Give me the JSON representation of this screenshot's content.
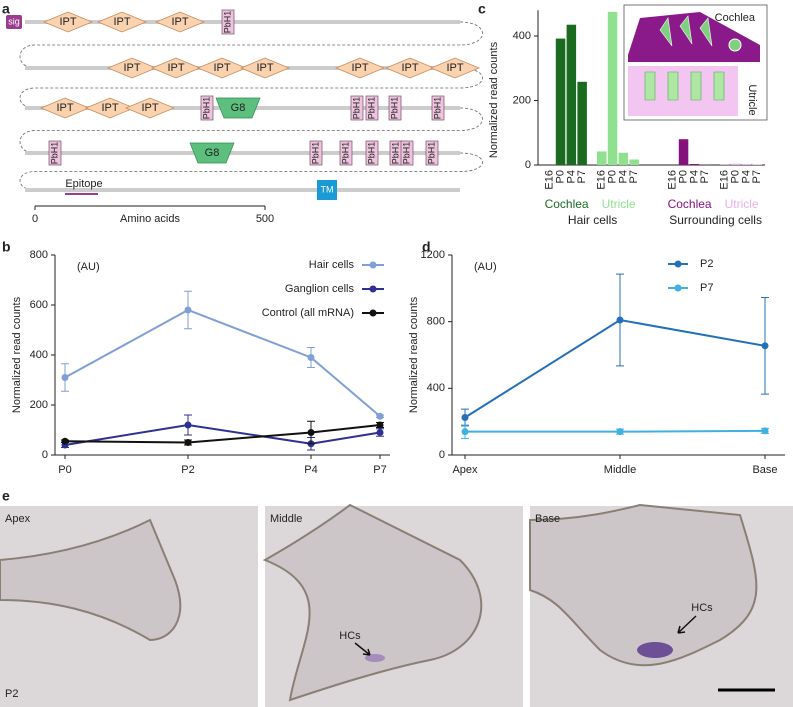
{
  "panel_labels": [
    "a",
    "b",
    "c",
    "d",
    "e"
  ],
  "domain_diagram": {
    "rows": [
      {
        "domains": [
          {
            "label": "sig",
            "shape": "tag"
          },
          {
            "label": "IPT",
            "shape": "diamond"
          },
          {
            "label": "IPT",
            "shape": "diamond"
          },
          {
            "label": "IPT",
            "shape": "diamond"
          },
          {
            "label": "PbH1",
            "shape": "box"
          }
        ]
      },
      {
        "domains": [
          {
            "label": "IPT",
            "shape": "diamond"
          },
          {
            "label": "IPT",
            "shape": "diamond"
          },
          {
            "label": "IPT",
            "shape": "diamond"
          },
          {
            "label": "IPT",
            "shape": "diamond"
          },
          {
            "label": "IPT",
            "shape": "diamond"
          },
          {
            "label": "IPT",
            "shape": "diamond"
          },
          {
            "label": "IPT",
            "shape": "diamond"
          }
        ]
      },
      {
        "domains": [
          {
            "label": "IPT",
            "shape": "diamond"
          },
          {
            "label": "IPT",
            "shape": "diamond"
          },
          {
            "label": "IPT",
            "shape": "diamond"
          },
          {
            "label": "PbH1",
            "shape": "box"
          },
          {
            "label": "G8",
            "shape": "trapezoid"
          },
          {
            "label": "PbH1",
            "shape": "box"
          },
          {
            "label": "PbH1",
            "shape": "box"
          },
          {
            "label": "PbH1",
            "shape": "box"
          },
          {
            "label": "PbH1",
            "shape": "box"
          }
        ]
      },
      {
        "domains": [
          {
            "label": "PbH1",
            "shape": "box"
          },
          {
            "label": "G8",
            "shape": "trapezoid"
          },
          {
            "label": "PbH1",
            "shape": "box"
          },
          {
            "label": "PbH1",
            "shape": "box"
          },
          {
            "label": "PbH1",
            "shape": "box"
          },
          {
            "label": "PbH1",
            "shape": "box"
          },
          {
            "label": "PbH1",
            "shape": "box"
          },
          {
            "label": "PbH1",
            "shape": "box"
          }
        ]
      },
      {
        "domains": [
          {
            "label": "Epitope",
            "shape": "underline"
          },
          {
            "label": "TM",
            "shape": "tm"
          }
        ]
      }
    ],
    "axis_label": "Amino acids",
    "axis_ticks": [
      0,
      500
    ]
  },
  "chart_data": [
    {
      "type": "line",
      "annotation": "(AU)",
      "ylabel": "Normalized read counts",
      "categories": [
        "P0",
        "P2",
        "P4",
        "P7"
      ],
      "ylim": [
        0,
        800
      ],
      "yticks": [
        0,
        200,
        400,
        600,
        800
      ],
      "series": [
        {
          "name": "Hair cells",
          "color": "#809fd6",
          "values": [
            310,
            580,
            390,
            155
          ],
          "errors": [
            55,
            75,
            40,
            5
          ]
        },
        {
          "name": "Ganglion cells",
          "color": "#2e3192",
          "values": [
            40,
            120,
            45,
            90
          ],
          "errors": [
            10,
            40,
            25,
            15
          ]
        },
        {
          "name": "Control (all mRNA)",
          "color": "#111111",
          "values": [
            55,
            50,
            90,
            120
          ],
          "errors": [
            5,
            10,
            45,
            10
          ]
        }
      ]
    },
    {
      "type": "bar",
      "ylabel": "Normalized read counts",
      "categories": [
        "E16",
        "P0",
        "P4",
        "P7"
      ],
      "ylim": [
        0,
        480
      ],
      "yticks": [
        0,
        200,
        400
      ],
      "groups": [
        "Hair cells",
        "Surrounding cells"
      ],
      "inset_labels": [
        "Cochlea",
        "Utricle"
      ],
      "series": [
        {
          "name": "Cochlea",
          "color": "#1a6b1f",
          "group": 0,
          "values": [
            0,
            392,
            435,
            258
          ]
        },
        {
          "name": "Utricle",
          "color": "#8fe08f",
          "group": 0,
          "values": [
            42,
            475,
            38,
            17
          ]
        },
        {
          "name": "Cochlea",
          "color": "#85117f",
          "group": 1,
          "values": [
            0,
            80,
            3,
            1
          ]
        },
        {
          "name": "Utricle",
          "color": "#e8b0e6",
          "group": 1,
          "values": [
            1,
            4,
            3,
            2
          ]
        }
      ]
    },
    {
      "type": "line",
      "annotation": "(AU)",
      "ylabel": "Normalized read counts",
      "categories": [
        "Apex",
        "Middle",
        "Base"
      ],
      "ylim": [
        0,
        1200
      ],
      "yticks": [
        0,
        400,
        800,
        1200
      ],
      "series": [
        {
          "name": "P2",
          "color": "#2470b8",
          "values": [
            225,
            810,
            655
          ],
          "errors": [
            50,
            275,
            290
          ]
        },
        {
          "name": "P7",
          "color": "#3fb0e0",
          "values": [
            140,
            140,
            145
          ],
          "errors": [
            40,
            15,
            15
          ]
        }
      ]
    }
  ],
  "micrographs": {
    "panels": [
      {
        "label": "Apex"
      },
      {
        "label": "Middle",
        "annotation": "HCs"
      },
      {
        "label": "Base",
        "annotation": "HCs"
      }
    ],
    "stage": "P2"
  }
}
